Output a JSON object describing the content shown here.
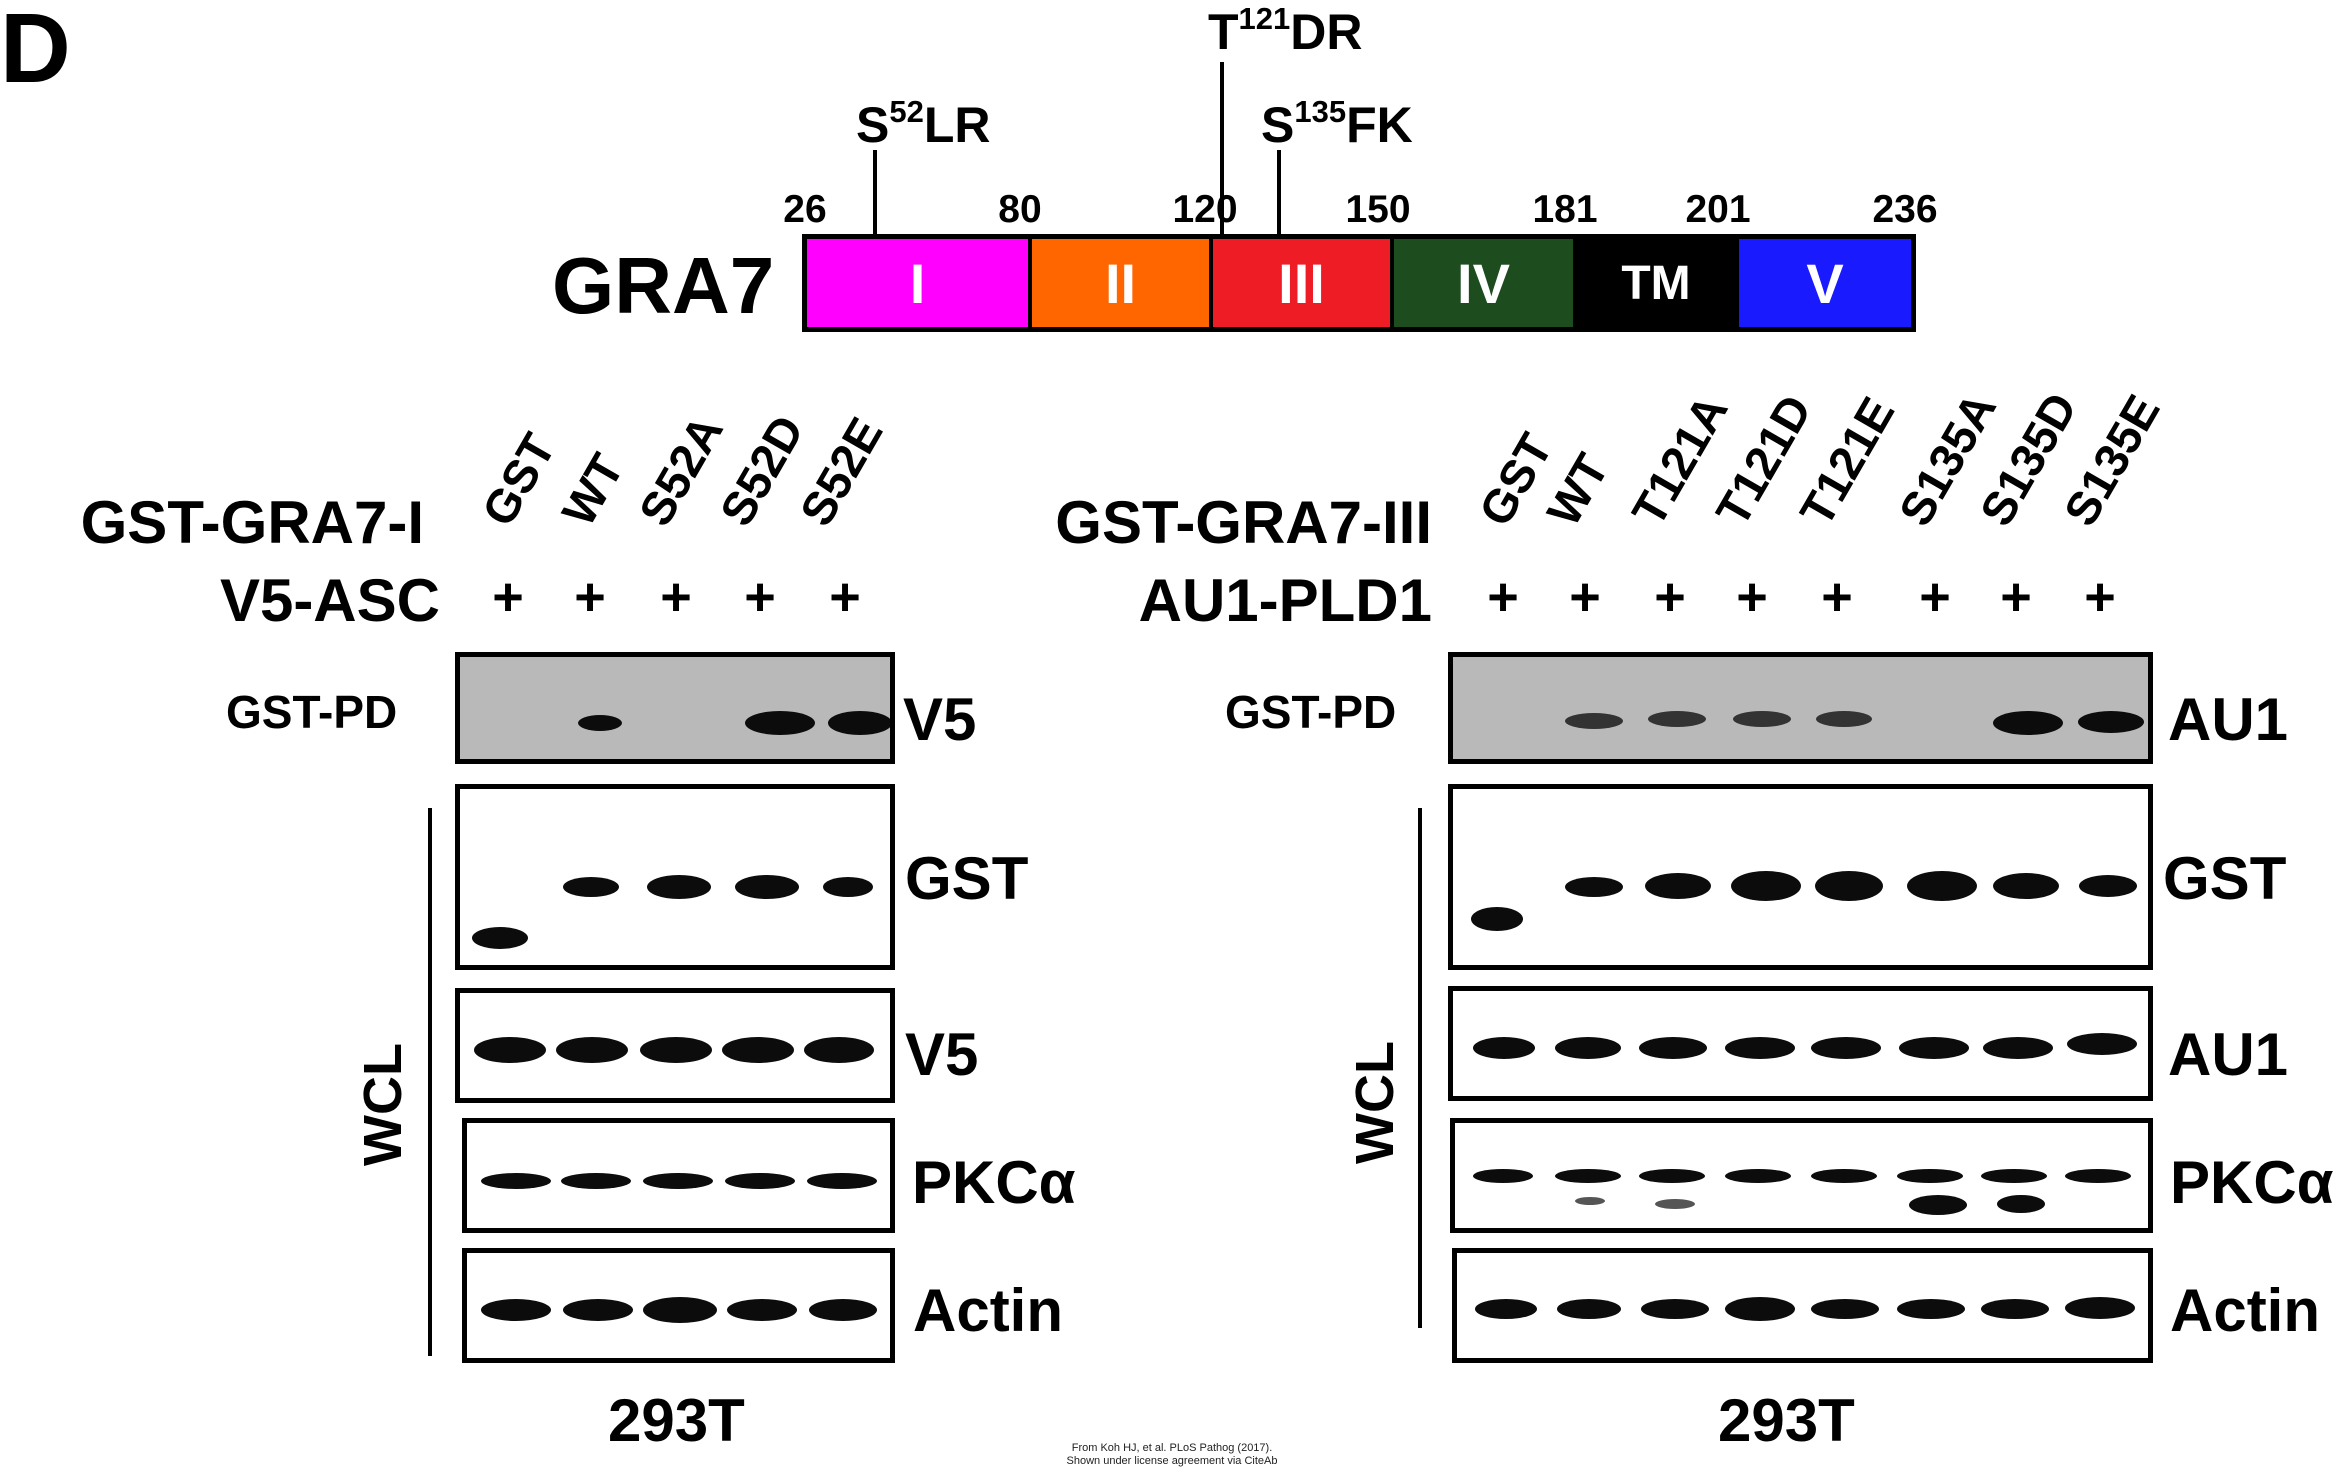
{
  "panel_letter": "D",
  "schematic": {
    "protein": "GRA7",
    "positions": [
      "26",
      "80",
      "120",
      "150",
      "181",
      "201",
      "236"
    ],
    "domains": [
      {
        "label": "I",
        "color": "#ff00ff"
      },
      {
        "label": "II",
        "color": "#ff6600"
      },
      {
        "label": "III",
        "color": "#ee1c24"
      },
      {
        "label": "IV",
        "color": "#1d4d1f"
      },
      {
        "label": "TM",
        "color": "#000000"
      },
      {
        "label": "V",
        "color": "#1a1aff"
      }
    ],
    "sites": [
      {
        "pre": "S",
        "sup": "52",
        "post": "LR"
      },
      {
        "pre": "T",
        "sup": "121",
        "post": "DR"
      },
      {
        "pre": "S",
        "sup": "135",
        "post": "FK"
      }
    ]
  },
  "left": {
    "construct_label": "GST-GRA7-I",
    "cotransfect_label": "V5-ASC",
    "lanes": [
      "GST",
      "WT",
      "S52A",
      "S52D",
      "S52E"
    ],
    "plus": [
      "+",
      "+",
      "+",
      "+",
      "+"
    ],
    "pd_label": "GST-PD",
    "wcl_label": "WCL",
    "blot_labels": [
      "V5",
      "GST",
      "V5",
      "PKCα",
      "Actin"
    ],
    "cell_line": "293T"
  },
  "right": {
    "construct_label": "GST-GRA7-III",
    "cotransfect_label": "AU1-PLD1",
    "lanes": [
      "GST",
      "WT",
      "T121A",
      "T121D",
      "T121E",
      "S135A",
      "S135D",
      "S135E"
    ],
    "plus": [
      "+",
      "+",
      "+",
      "+",
      "+",
      "+",
      "+",
      "+"
    ],
    "pd_label": "GST-PD",
    "wcl_label": "WCL",
    "blot_labels": [
      "AU1",
      "GST",
      "AU1",
      "PKCα",
      "Actin"
    ],
    "cell_line": "293T"
  },
  "credit": [
    "From Koh HJ, et al. PLoS Pathog (2017).",
    "Shown under license agreement via CiteAb"
  ]
}
